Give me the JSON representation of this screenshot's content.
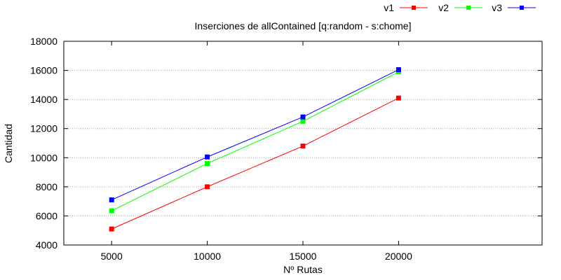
{
  "chart_data": {
    "type": "line",
    "title": "Inserciones de allContained [q:random - s:chome]",
    "xlabel": "Nº Rutas",
    "ylabel": "Cantidad",
    "x": [
      5000,
      10000,
      15000,
      20000
    ],
    "x_ticks": [
      "5000",
      "10000",
      "15000",
      "20000"
    ],
    "y_ticks": [
      "4000",
      "6000",
      "8000",
      "10000",
      "12000",
      "14000",
      "16000",
      "18000"
    ],
    "xlim": [
      2500,
      27500
    ],
    "ylim": [
      4000,
      18000
    ],
    "grid": "horizontal dotted",
    "legend_position": "top-right",
    "series": [
      {
        "name": "v1",
        "color": "#ff0000",
        "values": [
          5100,
          8000,
          10800,
          14100
        ]
      },
      {
        "name": "v2",
        "color": "#00ff00",
        "values": [
          6350,
          9600,
          12500,
          15900
        ]
      },
      {
        "name": "v3",
        "color": "#0000ff",
        "values": [
          7100,
          10050,
          12800,
          16050
        ]
      }
    ]
  }
}
